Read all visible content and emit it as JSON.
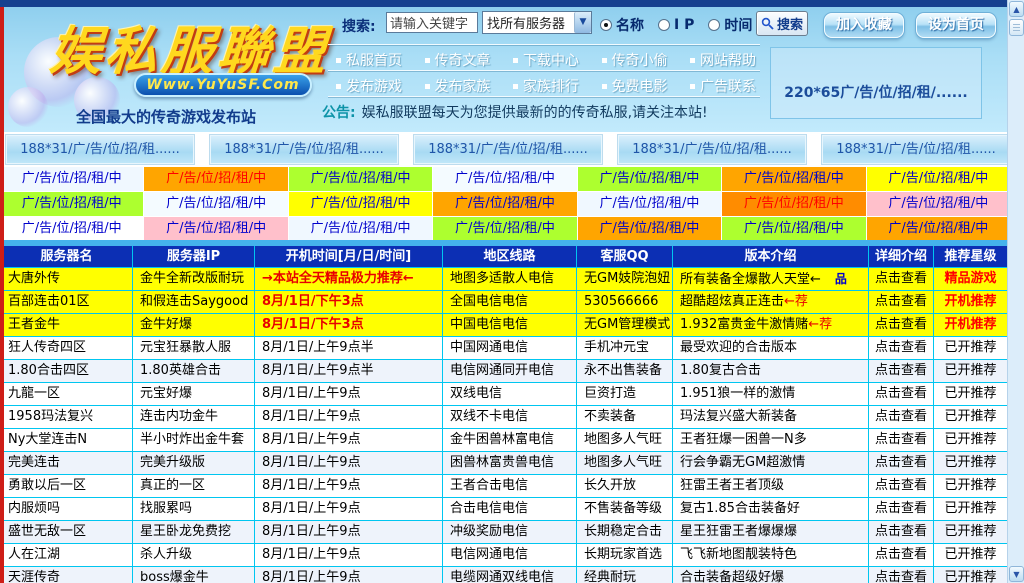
{
  "header": {
    "logo_title": "娱私服聯盟",
    "logo_domain": "Www.YuYuSF.Com",
    "tagline": "全国最大的传奇游戏发布站",
    "search": {
      "label": "搜索:",
      "input_value": "请输入关键字",
      "select_value": "找所有服务器",
      "radios": [
        {
          "label": "名称",
          "checked": true
        },
        {
          "label": "I P",
          "checked": false
        },
        {
          "label": "时间",
          "checked": false
        }
      ],
      "button_label": "搜索"
    },
    "actions": {
      "favorite": "加入收藏",
      "homepage": "设为首页"
    },
    "nav_row1": [
      "私服首页",
      "传奇文章",
      "下载中心",
      "传奇小偷",
      "网站帮助"
    ],
    "nav_row2": [
      "发布游戏",
      "发布家族",
      "家族排行",
      "免费电影",
      "广告联系"
    ],
    "notice_label": "公告:",
    "notice_text": "娱私服联盟每天为您提供最新的的传奇私服,请关注本站!",
    "side_ad_text": "220*65广/告/位/招/租/......"
  },
  "banners": [
    "188*31/广/告/位/招/租......",
    "188*31/广/告/位/招/租......",
    "188*31/广/告/位/招/租......",
    "188*31/广/告/位/招/租......",
    "188*31/广/告/位/招/租......"
  ],
  "ad_grid": {
    "text": "广/告/位/招/租/中",
    "cells": [
      {
        "bg": "#f0f8ff"
      },
      {
        "bg": "#ffa500",
        "red": true
      },
      {
        "bg": "#adff2f"
      },
      {
        "bg": "#f4fbff"
      },
      {
        "bg": "#adff2f"
      },
      {
        "bg": "#ffa500"
      },
      {
        "bg": "#ffff00"
      },
      {
        "bg": "#adff2f"
      },
      {
        "bg": "#f4fbff"
      },
      {
        "bg": "#ffff00"
      },
      {
        "bg": "#ffa500"
      },
      {
        "bg": "#f0f8ff"
      },
      {
        "bg": "#ff8c00",
        "red": true
      },
      {
        "bg": "#ffc0cb"
      },
      {
        "bg": "#ffffff"
      },
      {
        "bg": "#ffc0cb"
      },
      {
        "bg": "#f0f8ff"
      },
      {
        "bg": "#adff2f"
      },
      {
        "bg": "#ffa500"
      },
      {
        "bg": "#adff2f"
      },
      {
        "bg": "#ffa500"
      }
    ]
  },
  "table": {
    "headers": [
      "服务器名",
      "服务器IP",
      "开机时间[月/日/时间]",
      "地区线路",
      "客服QQ",
      "版本介绍",
      "详细介绍",
      "推荐星级"
    ],
    "detail_label": "点击查看",
    "version_icon": "品",
    "rows": [
      {
        "name": "大唐外传",
        "ip": "金牛全新改版耐玩",
        "time": "→本站全天精品极力推荐←",
        "line": "地图多适散人电信",
        "qq": "无GM妓院泡妞",
        "ver": "所有装备全爆散人天堂←",
        "ver_red": "",
        "icon": true,
        "star": "精品游戏",
        "yellow": true,
        "time_red": true,
        "star_red": true
      },
      {
        "name": "百部连击01区",
        "ip": "和假连击Saygood",
        "time": "8月/1日/下午3点",
        "line": "全国电信电信",
        "qq": "530566666",
        "ver": "超酷超炫真正连击",
        "ver_red": "←荐",
        "icon": false,
        "star": "开机推荐",
        "yellow": true,
        "time_red": true,
        "star_red": true
      },
      {
        "name": "王者金牛",
        "ip": "金牛好爆",
        "time": "8月/1日/下午3点",
        "line": "中国电信电信",
        "qq": "无GM管理模式",
        "ver": "1.932富贵金牛激情赌",
        "ver_red": "←荐",
        "icon": false,
        "star": "开机推荐",
        "yellow": true,
        "time_red": true,
        "star_red": true
      },
      {
        "name": "狂人传奇四区",
        "ip": "元宝狂暴散人服",
        "time": "8月/1日/上午9点半",
        "line": "中国网通电信",
        "qq": "手机冲元宝",
        "ver": "最受欢迎的合击版本",
        "ver_red": "",
        "icon": false,
        "star": "已开推荐"
      },
      {
        "name": "1.80合击四区",
        "ip": "1.80英雄合击",
        "time": "8月/1日/上午9点半",
        "line": "电信网通同开电信",
        "qq": "永不出售装备",
        "ver": "1.80复古合击",
        "ver_red": "",
        "icon": false,
        "star": "已开推荐",
        "tint": true
      },
      {
        "name": "九龍一区",
        "ip": "元宝好爆",
        "time": "8月/1日/上午9点",
        "line": "双线电信",
        "qq": "巨资打造",
        "ver": "1.951狼一样的激情",
        "ver_red": "",
        "icon": false,
        "star": "已开推荐"
      },
      {
        "name": "1958玛法复兴",
        "ip": "连击内功金牛",
        "time": "8月/1日/上午9点",
        "line": "双线不卡电信",
        "qq": "不卖装备",
        "ver": "玛法复兴盛大新装备",
        "ver_red": "",
        "icon": false,
        "star": "已开推荐"
      },
      {
        "name": "Ny大堂连击N",
        "ip": "半小时炸出金牛套",
        "time": "8月/1日/上午9点",
        "line": "金牛困兽林富电信",
        "qq": "地图多人气旺",
        "ver": "王者狂爆一困兽一N多",
        "ver_red": "",
        "icon": false,
        "star": "已开推荐"
      },
      {
        "name": "完美连击",
        "ip": "完美升级版",
        "time": "8月/1日/上午9点",
        "line": "困兽林富贵兽电信",
        "qq": "地图多人气旺",
        "ver": "行会争霸无GM超激情",
        "ver_red": "",
        "icon": false,
        "star": "已开推荐",
        "tint": true
      },
      {
        "name": "勇敢以后一区",
        "ip": "真正的一区",
        "time": "8月/1日/上午9点",
        "line": "王者合击电信",
        "qq": "长久开放",
        "ver": "狂雷王者王者顶级",
        "ver_red": "",
        "icon": false,
        "star": "已开推荐"
      },
      {
        "name": "内服烦吗",
        "ip": "找服累吗",
        "time": "8月/1日/上午9点",
        "line": "合击电信电信",
        "qq": "不售装备等级",
        "ver": "复古1.85合击装备好",
        "ver_red": "",
        "icon": false,
        "star": "已开推荐"
      },
      {
        "name": "盛世无敌一区",
        "ip": "星王卧龙免费挖",
        "time": "8月/1日/上午9点",
        "line": "冲级奖励电信",
        "qq": "长期稳定合击",
        "ver": "星王狂雷王者爆爆爆",
        "ver_red": "",
        "icon": false,
        "star": "已开推荐",
        "tint": true
      },
      {
        "name": "人在江湖",
        "ip": "杀人升级",
        "time": "8月/1日/上午9点",
        "line": "电信网通电信",
        "qq": "长期玩家首选",
        "ver": "飞飞新地图靓装特色",
        "ver_red": "",
        "icon": false,
        "star": "已开推荐"
      },
      {
        "name": "天涯传奇",
        "ip": "boss爆金牛",
        "time": "8月/1日/上午9点",
        "line": "电缆网通双线电信",
        "qq": "经典耐玩",
        "ver": "合击装备超级好爆",
        "ver_red": "",
        "icon": false,
        "star": "已开推荐",
        "tint": true
      }
    ]
  }
}
